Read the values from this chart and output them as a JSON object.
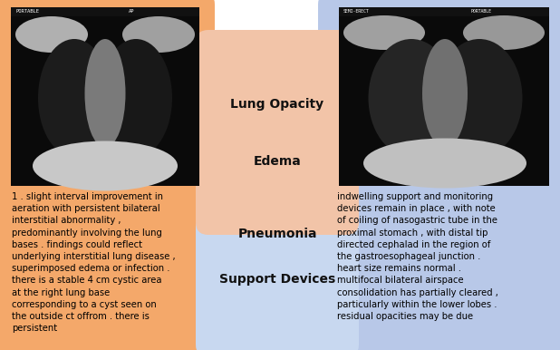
{
  "left_bg_color": "#F4A86A",
  "right_bg_color": "#B8C8E8",
  "center_orange_bg": "#F2C4A8",
  "center_blue_bg": "#C8D8F0",
  "left_text": "1 . slight interval improvement in\naeration with persistent bilateral\ninterstitial abnormality ,\npredominantly involving the lung\nbases . findings could reflect\nunderlying interstitial lung disease ,\nsuperimposed edema or infection .\nthere is a stable 4 cm cystic area\nat the right lung base\ncorresponding to a cyst seen on\nthe outside ct offrom . there is\npersistent",
  "right_text": "indwelling support and monitoring\ndevices remain in place , with note\nof coiling of nasogastric tube in the\nproximal stomach , with distal tip\ndirected cephalad in the region of\nthe gastroesophageal junction .\nheart size remains normal .\nmultifocal bilateral airspace\nconsolidation has partially cleared ,\nparticularly within the lower lobes .\nresidual opacities may be due",
  "labels": [
    "Lung Opacity",
    "Edema",
    "Pneumonia",
    "Support Devices"
  ],
  "label_fontsize": 10,
  "text_fontsize": 7.2,
  "fig_width": 6.18,
  "fig_height": 3.86,
  "dpi": 100
}
